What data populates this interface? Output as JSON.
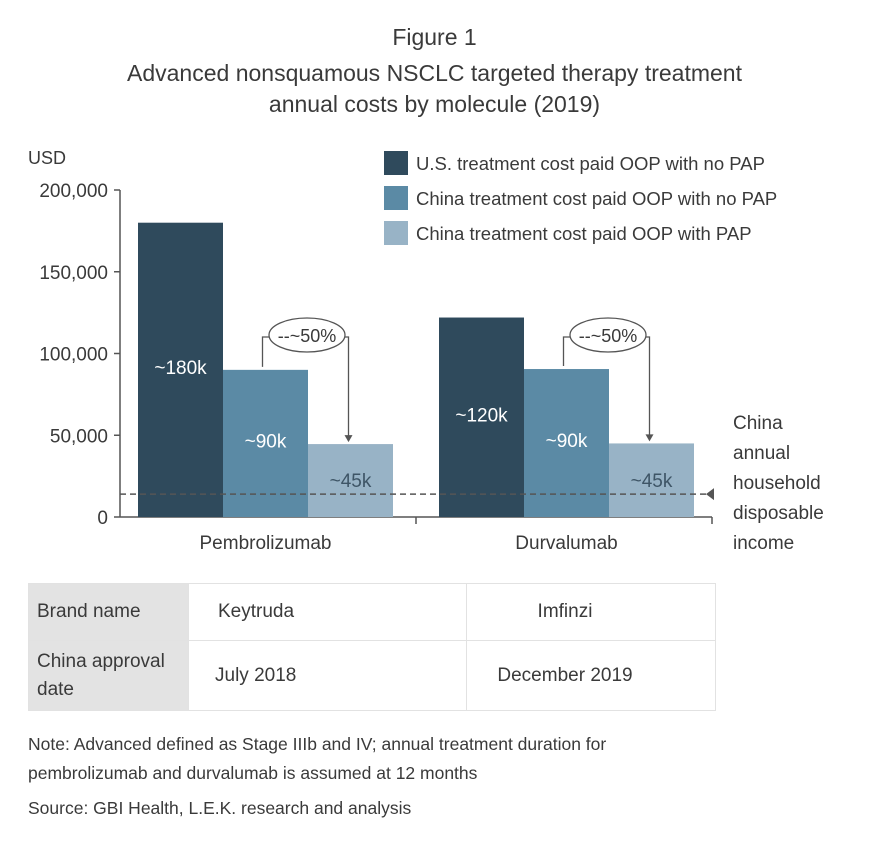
{
  "figure_label": "Figure 1",
  "title_line1": "Advanced nonsquamous NSCLC targeted therapy treatment",
  "title_line2": "annual costs by molecule (2019)",
  "chart_data": {
    "type": "bar",
    "ylabel": "USD",
    "ylim": [
      0,
      200000
    ],
    "yticks": [
      0,
      50000,
      100000,
      150000,
      200000
    ],
    "ytick_labels": [
      "0",
      "50,000",
      "100,000",
      "150,000",
      "200,000"
    ],
    "categories": [
      "Pembrolizumab",
      "Durvalumab"
    ],
    "series": [
      {
        "name": "U.S. treatment cost paid OOP with no PAP",
        "color": "#2f4a5c",
        "values": [
          180000,
          122000
        ],
        "labels": [
          "~180k",
          "~120k"
        ]
      },
      {
        "name": "China treatment cost paid OOP with no PAP",
        "color": "#5b8aa5",
        "values": [
          90000,
          90500
        ],
        "labels": [
          "~90k",
          "~90k"
        ]
      },
      {
        "name": "China treatment cost paid OOP with PAP",
        "color": "#98b3c6",
        "values": [
          44600,
          45000
        ],
        "labels": [
          "~45k",
          "~45k"
        ]
      }
    ],
    "annotations": [
      {
        "text": "--~50%"
      },
      {
        "text": "--~50%"
      }
    ],
    "reference_line": {
      "value": 14000,
      "label_lines": [
        "China",
        "annual",
        "household",
        "disposable",
        "income"
      ]
    },
    "legend_position": "top-right",
    "grid": false
  },
  "table": {
    "rows": [
      {
        "header": "Brand name",
        "values": [
          "Keytruda",
          "Imfinzi"
        ]
      },
      {
        "header": "China approval date",
        "values": [
          "July 2018",
          "December 2019"
        ]
      }
    ]
  },
  "note_line1": "Note: Advanced defined as Stage IIIb and IV; annual treatment duration for",
  "note_line2": "pembrolizumab and durvalumab is assumed at 12 months",
  "source": "Source: GBI Health, L.E.K. research and analysis"
}
